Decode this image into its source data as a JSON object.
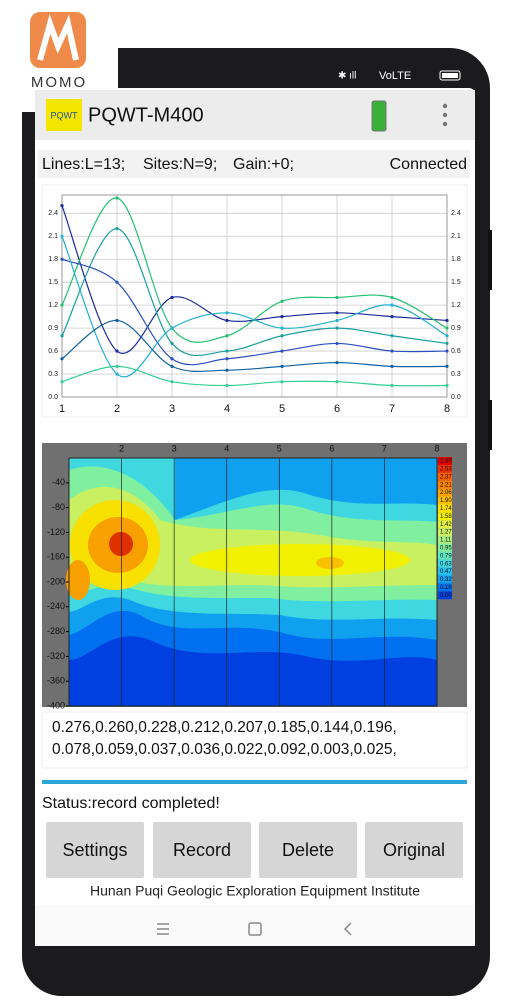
{
  "brand": {
    "logo": "MOMO"
  },
  "status_bar": {
    "network": "VoLTE"
  },
  "app_bar": {
    "icon": "PQWT",
    "title": "PQWT-M400"
  },
  "info": {
    "lines": "Lines:L=13;",
    "sites": "Sites:N=9;",
    "gain": "Gain:+0;",
    "connection": "Connected"
  },
  "chart_data": [
    {
      "type": "line",
      "x": [
        1,
        2,
        3,
        4,
        5,
        6,
        7,
        8
      ],
      "xlim": [
        1,
        8
      ],
      "xticks": [
        1,
        2,
        3,
        4,
        5,
        6,
        7,
        8
      ],
      "ylim": [
        0,
        2.6
      ],
      "yticks": [
        {
          "value": 0,
          "label": "0.0"
        },
        {
          "value": 0.3,
          "label": "0.3"
        },
        {
          "value": 0.6,
          "label": "0.6"
        },
        {
          "value": 0.9,
          "label": "0.9"
        },
        {
          "value": 1.2,
          "label": "1.2"
        },
        {
          "value": 1.5,
          "label": "1.5"
        },
        {
          "value": 1.8,
          "label": "1.8"
        },
        {
          "value": 2.1,
          "label": "2.1"
        },
        {
          "value": 2.4,
          "label": "2.4"
        }
      ],
      "grid": true,
      "series": [
        {
          "color": "#1a2a9a",
          "values": [
            2.5,
            0.6,
            1.3,
            1.0,
            1.05,
            1.1,
            1.05,
            1.0
          ]
        },
        {
          "color": "#22c070",
          "values": [
            1.2,
            2.6,
            0.9,
            0.8,
            1.25,
            1.3,
            1.3,
            0.9
          ]
        },
        {
          "color": "#1aa0a0",
          "values": [
            0.8,
            2.2,
            0.7,
            0.6,
            0.8,
            0.9,
            0.8,
            0.7
          ]
        },
        {
          "color": "#2a50c0",
          "values": [
            1.8,
            1.5,
            0.5,
            0.5,
            0.6,
            0.7,
            0.6,
            0.6
          ]
        },
        {
          "color": "#20b0d0",
          "values": [
            2.1,
            0.3,
            0.9,
            1.1,
            0.9,
            1.0,
            1.2,
            0.8
          ]
        },
        {
          "color": "#1060a0",
          "values": [
            0.5,
            1.0,
            0.4,
            0.35,
            0.4,
            0.45,
            0.4,
            0.4
          ]
        },
        {
          "color": "#30d090",
          "values": [
            0.2,
            0.4,
            0.2,
            0.15,
            0.2,
            0.2,
            0.15,
            0.15
          ]
        }
      ]
    },
    {
      "type": "heatmap",
      "xlim": [
        1,
        8
      ],
      "xticks": [
        2,
        3,
        4,
        5,
        6,
        7,
        8
      ],
      "ylim": [
        0,
        -400
      ],
      "yticks": [
        -40,
        -80,
        -120,
        -160,
        -200,
        -240,
        -280,
        -320,
        -360,
        -400
      ],
      "colorbar": [
        {
          "value": 2.69,
          "label": "2.69",
          "color": "#e00000"
        },
        {
          "value": 2.53,
          "label": "2.53",
          "color": "#f03000"
        },
        {
          "value": 2.37,
          "label": "2.37",
          "color": "#f86000"
        },
        {
          "value": 2.21,
          "label": "2.21",
          "color": "#f88000"
        },
        {
          "value": 2.06,
          "label": "2.06",
          "color": "#f8a000"
        },
        {
          "value": 1.9,
          "label": "1.90",
          "color": "#f8c000"
        },
        {
          "value": 1.74,
          "label": "1.74",
          "color": "#f8e000"
        },
        {
          "value": 1.58,
          "label": "1.58",
          "color": "#f0f000"
        },
        {
          "value": 1.42,
          "label": "1.42",
          "color": "#e0f040"
        },
        {
          "value": 1.27,
          "label": "1.27",
          "color": "#c8f060"
        },
        {
          "value": 1.11,
          "label": "1.11",
          "color": "#a8f080"
        },
        {
          "value": 0.95,
          "label": "0.95",
          "color": "#80f0a0"
        },
        {
          "value": 0.79,
          "label": "0.79",
          "color": "#60e8c0"
        },
        {
          "value": 0.63,
          "label": "0.63",
          "color": "#40d8e0"
        },
        {
          "value": 0.47,
          "label": "0.47",
          "color": "#20c0f0"
        },
        {
          "value": 0.32,
          "label": "0.32",
          "color": "#10a0f0"
        },
        {
          "value": 0.16,
          "label": "0.16",
          "color": "#0070f0"
        },
        {
          "value": 0,
          "label": "0.00",
          "color": "#0040e0"
        }
      ]
    }
  ],
  "readings": [
    "0.276,0.260,0.228,0.212,0.207,0.185,0.144,0.196,",
    "0.078,0.059,0.037,0.036,0.022,0.092,0.003,0.025,"
  ],
  "status": "Status:record completed!",
  "buttons": [
    "Settings",
    "Record",
    "Delete",
    "Original"
  ],
  "footer": "Hunan Puqi Geologic Exploration Equipment Institute"
}
